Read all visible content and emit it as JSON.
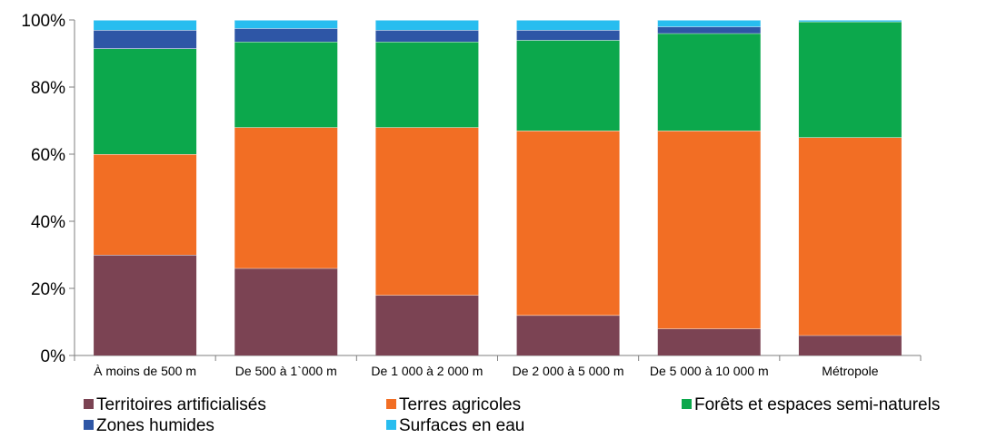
{
  "chart_data": {
    "type": "bar",
    "stacked": true,
    "normalized": true,
    "categories": [
      "À moins de 500 m",
      "De 500 à 1`000 m",
      "De 1 000 à 2 000 m",
      "De 2 000 à 5 000 m",
      "De 5 000 à 10 000 m",
      "Métropole"
    ],
    "series": [
      {
        "name": "Territoires artificialisés",
        "color": "#7B4353",
        "values": [
          30,
          26,
          18,
          12,
          8,
          6
        ]
      },
      {
        "name": "Terres agricoles",
        "color": "#F26E24",
        "values": [
          30,
          42,
          50,
          55,
          59,
          59
        ]
      },
      {
        "name": "Forêts et espaces semi-naturels",
        "color": "#0CA84C",
        "values": [
          31.5,
          25.5,
          25.5,
          27,
          29,
          34.5
        ]
      },
      {
        "name": "Zones humides",
        "color": "#2E56A6",
        "values": [
          5.5,
          4,
          3.5,
          3,
          2,
          0
        ]
      },
      {
        "name": "Surfaces en eau",
        "color": "#28BDEF",
        "values": [
          3,
          2.5,
          3,
          3,
          2,
          0.5
        ]
      }
    ],
    "ylim": [
      0,
      100
    ],
    "y_ticks": [
      0,
      20,
      40,
      60,
      80,
      100
    ],
    "y_tick_labels": [
      "0%",
      "20%",
      "40%",
      "60%",
      "80%",
      "100%"
    ],
    "grid": false,
    "legend_position": "bottom"
  }
}
